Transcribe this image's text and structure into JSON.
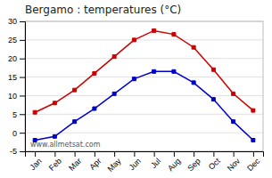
{
  "chart_data": {
    "type": "line",
    "title": "Bergamo : temperatures (°C)",
    "categories": [
      "Jan",
      "Feb",
      "Mar",
      "Apr",
      "May",
      "Jun",
      "Jul",
      "Aug",
      "Sep",
      "Oct",
      "Nov",
      "Dec"
    ],
    "series": [
      {
        "color": "#cc0000",
        "marker": "square",
        "values": [
          5.5,
          8.0,
          11.5,
          16.0,
          20.5,
          25.0,
          27.5,
          26.5,
          23.0,
          17.0,
          10.5,
          6.0
        ]
      },
      {
        "color": "#0000cc",
        "marker": "square",
        "values": [
          -2.0,
          -1.0,
          3.0,
          6.5,
          10.5,
          14.5,
          16.5,
          16.5,
          13.5,
          9.0,
          3.0,
          -2.0
        ]
      }
    ],
    "ylim": [
      -5,
      30
    ],
    "yticks": [
      -5,
      0,
      5,
      10,
      15,
      20,
      25,
      30
    ],
    "grid": true,
    "annotations": [
      "www.allmetsat.com"
    ]
  }
}
